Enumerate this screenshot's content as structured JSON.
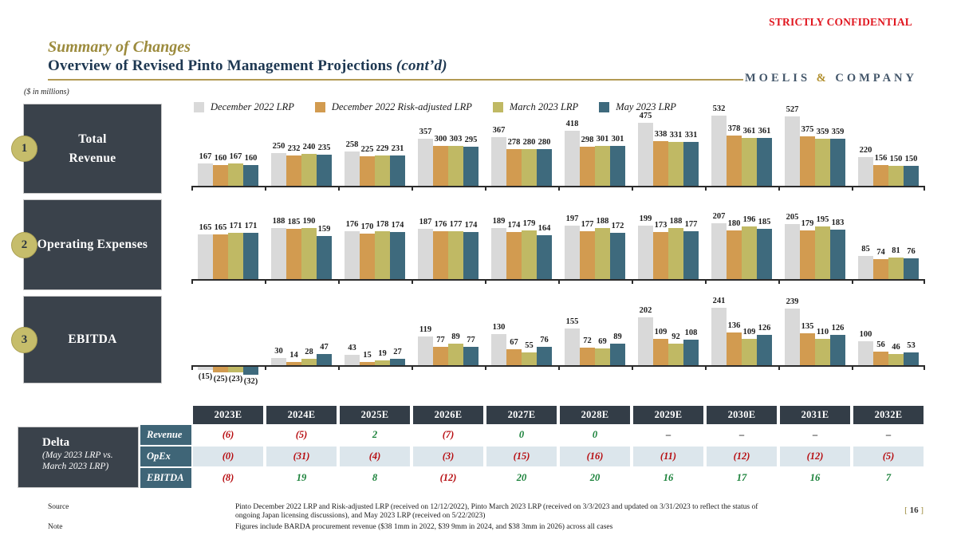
{
  "meta": {
    "confidential": "STRICTLY CONFIDENTIAL",
    "units_note": "($ in millions)",
    "logo": {
      "moelis": "MOELIS",
      "amp": "&",
      "company": "COMPANY"
    },
    "page": {
      "bracket_left": "[",
      "number": "16",
      "bracket_right": "]"
    },
    "colors": {
      "accent_gold": "#9c8b3d",
      "title_navy": "#1e3852",
      "confidential_red": "#e0161f",
      "sidebar_slate": "#3a424b",
      "row_label_teal": "#3f6577",
      "shaded_row": "#dce6ec",
      "negative_red": "#b70d11",
      "positive_green": "#188038"
    }
  },
  "header": {
    "eyebrow": "Summary of Changes",
    "title": "Overview of Revised Pinto Management Projections ",
    "title_suffix": "(cont’d)"
  },
  "legend": [
    {
      "label": "December 2022 LRP",
      "color": "#d9d9d9"
    },
    {
      "label": "December 2022 Risk-adjusted LRP",
      "color": "#d29b50"
    },
    {
      "label": "March 2023 LRP",
      "color": "#c0b964"
    },
    {
      "label": "May 2023 LRP",
      "color": "#3e6a7d"
    }
  ],
  "sections": [
    {
      "number": "1",
      "label_lines": [
        "Total",
        "Revenue"
      ]
    },
    {
      "number": "2",
      "label_lines": [
        "Operating Expenses"
      ]
    },
    {
      "number": "3",
      "label_lines": [
        "EBITDA"
      ]
    }
  ],
  "chart_data": [
    {
      "id": "revenue",
      "type": "bar",
      "title": "Total Revenue",
      "categories": [
        "2023E",
        "2024E",
        "2025E",
        "2026E",
        "2027E",
        "2028E",
        "2029E",
        "2030E",
        "2031E",
        "2032E"
      ],
      "ylim": [
        0,
        560
      ],
      "legend_position": "top",
      "grid": false,
      "series": [
        {
          "name": "December 2022 LRP",
          "values": [
            167,
            250,
            258,
            357,
            367,
            418,
            475,
            532,
            527,
            220
          ]
        },
        {
          "name": "December 2022 Risk-adjusted LRP",
          "values": [
            160,
            232,
            225,
            300,
            278,
            298,
            338,
            378,
            375,
            156
          ]
        },
        {
          "name": "March 2023 LRP",
          "values": [
            167,
            240,
            229,
            303,
            280,
            301,
            331,
            361,
            359,
            150
          ]
        },
        {
          "name": "May 2023 LRP",
          "values": [
            160,
            235,
            231,
            295,
            280,
            301,
            331,
            361,
            359,
            150
          ]
        }
      ]
    },
    {
      "id": "opex",
      "type": "bar",
      "title": "Operating Expenses",
      "categories": [
        "2023E",
        "2024E",
        "2025E",
        "2026E",
        "2027E",
        "2028E",
        "2029E",
        "2030E",
        "2031E",
        "2032E"
      ],
      "ylim": [
        0,
        230
      ],
      "legend_position": "none",
      "grid": false,
      "series": [
        {
          "name": "December 2022 LRP",
          "values": [
            165,
            188,
            176,
            187,
            189,
            197,
            199,
            207,
            205,
            85
          ]
        },
        {
          "name": "December 2022 Risk-adjusted LRP",
          "values": [
            165,
            185,
            170,
            176,
            174,
            177,
            173,
            180,
            179,
            74
          ]
        },
        {
          "name": "March 2023 LRP",
          "values": [
            171,
            190,
            178,
            177,
            179,
            188,
            188,
            196,
            195,
            81
          ]
        },
        {
          "name": "May 2023 LRP",
          "values": [
            171,
            159,
            174,
            174,
            164,
            172,
            177,
            185,
            183,
            76
          ]
        }
      ]
    },
    {
      "id": "ebitda",
      "type": "bar",
      "title": "EBITDA",
      "categories": [
        "2023E",
        "2024E",
        "2025E",
        "2026E",
        "2027E",
        "2028E",
        "2029E",
        "2030E",
        "2031E",
        "2032E"
      ],
      "ylim": [
        -40,
        250
      ],
      "legend_position": "none",
      "grid": false,
      "series": [
        {
          "name": "December 2022 LRP",
          "values": [
            -15,
            30,
            43,
            119,
            130,
            155,
            202,
            241,
            239,
            100
          ]
        },
        {
          "name": "December 2022 Risk-adjusted LRP",
          "values": [
            -25,
            14,
            15,
            77,
            67,
            72,
            109,
            136,
            135,
            56
          ]
        },
        {
          "name": "March 2023 LRP",
          "values": [
            -23,
            28,
            19,
            89,
            55,
            69,
            92,
            109,
            110,
            46
          ]
        },
        {
          "name": "May 2023 LRP",
          "values": [
            -32,
            47,
            27,
            77,
            76,
            89,
            108,
            126,
            126,
            53
          ]
        }
      ]
    }
  ],
  "table": {
    "delta_title": "Delta",
    "delta_subtitle_line1": "(May 2023 LRP vs.",
    "delta_subtitle_line2": "March 2023 LRP)",
    "headers": [
      "2023E",
      "2024E",
      "2025E",
      "2026E",
      "2027E",
      "2028E",
      "2029E",
      "2030E",
      "2031E",
      "2032E"
    ],
    "rows": [
      {
        "label": "Revenue",
        "values": [
          "(6)",
          "(5)",
          "2",
          "(7)",
          "0",
          "0",
          "–",
          "–",
          "–",
          "–"
        ],
        "shaded": false
      },
      {
        "label": "OpEx",
        "values": [
          "(0)",
          "(31)",
          "(4)",
          "(3)",
          "(15)",
          "(16)",
          "(11)",
          "(12)",
          "(12)",
          "(5)"
        ],
        "shaded": true
      },
      {
        "label": "EBITDA",
        "values": [
          "(8)",
          "19",
          "8",
          "(12)",
          "20",
          "20",
          "16",
          "17",
          "16",
          "7"
        ],
        "shaded": false
      }
    ]
  },
  "footer": {
    "source_label": "Source",
    "source_text": "Pinto December 2022 LRP and Risk-adjusted LRP (received on 12/12/2022), Pinto March 2023 LRP (received on 3/3/2023 and updated on 3/31/2023 to reflect the status of ongoing Japan licensing discussions), and May 2023 LRP (received on 5/22/2023)",
    "note_label": "Note",
    "note_text": "Figures include BARDA procurement revenue ($38 1mm in 2022, $39 9mm in 2024, and $38 3mm in 2026) across all cases"
  }
}
